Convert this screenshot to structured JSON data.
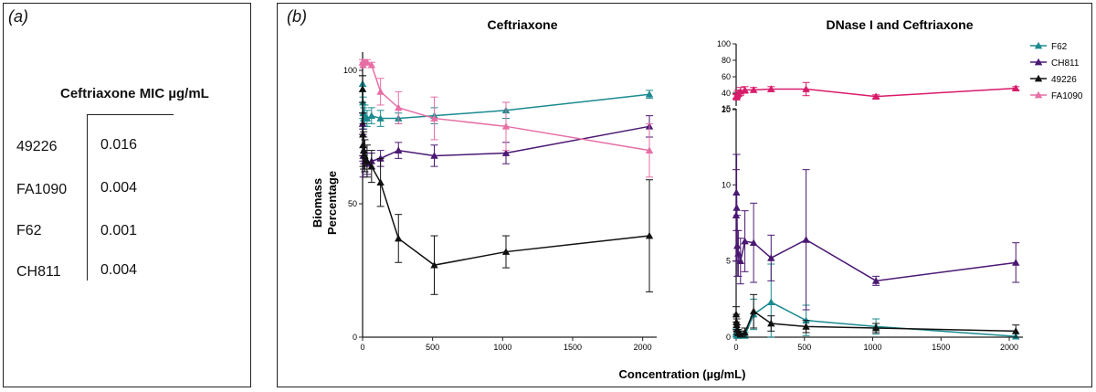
{
  "panel_a": {
    "label": "(a)",
    "table_header": "Ceftriaxone MIC µg/mL",
    "rows": [
      {
        "strain": "49226",
        "mic": "0.016"
      },
      {
        "strain": "FA1090",
        "mic": "0.004"
      },
      {
        "strain": "F62",
        "mic": "0.001"
      },
      {
        "strain": "CH811",
        "mic": "0.004"
      }
    ]
  },
  "panel_b": {
    "label": "(b)",
    "xlabel": "Concentration (µg/mL)",
    "ylabel_line1": "Biomass",
    "ylabel_line2": "Percentage"
  },
  "colors": {
    "F62": "#1a8a8f",
    "CH811": "#4a1873",
    "49226": "#111111",
    "FA1090": "#e66fa6",
    "FA1090_dnase": "#d81b6a"
  },
  "legend": [
    "F62",
    "CH811",
    "49226",
    "FA1090"
  ],
  "chart_data": [
    {
      "type": "line",
      "title": "Ceftriaxone",
      "xlim": [
        0,
        2100
      ],
      "ylim": [
        0,
        100
      ],
      "xticks": [
        0,
        500,
        1000,
        1500,
        2000
      ],
      "yticks": [
        0,
        50,
        100
      ],
      "series": [
        {
          "name": "F62",
          "color": "#1a8a8f",
          "x": [
            0,
            2,
            4,
            8,
            16,
            32,
            64,
            128,
            256,
            512,
            1024,
            2048
          ],
          "y": [
            95,
            88,
            84,
            82,
            83,
            82,
            83,
            82,
            82,
            83,
            85,
            91
          ],
          "err": [
            3,
            6,
            6,
            4,
            4,
            3,
            3,
            3,
            2,
            3,
            3,
            1.5
          ]
        },
        {
          "name": "CH811",
          "color": "#4a1873",
          "x": [
            0,
            2,
            4,
            8,
            16,
            32,
            64,
            128,
            256,
            512,
            1024,
            2048
          ],
          "y": [
            80,
            72,
            68,
            70,
            66,
            65,
            66,
            67,
            70,
            68,
            69,
            79
          ],
          "err": [
            4,
            6,
            8,
            5,
            4,
            4,
            3,
            3,
            3,
            4,
            4,
            4
          ]
        },
        {
          "name": "49226",
          "color": "#111111",
          "x": [
            0,
            2,
            4,
            8,
            16,
            32,
            64,
            128,
            256,
            512,
            1024,
            2048
          ],
          "y": [
            93,
            76,
            72,
            70,
            68,
            66,
            64,
            58,
            37,
            27,
            32,
            38
          ],
          "err": [
            5,
            8,
            8,
            7,
            6,
            6,
            6,
            9,
            9,
            11,
            6,
            21
          ]
        },
        {
          "name": "FA1090",
          "color": "#e66fa6",
          "x": [
            0,
            4,
            16,
            32,
            64,
            128,
            256,
            512,
            1024,
            2048
          ],
          "y": [
            103,
            102,
            103,
            103,
            102,
            92,
            86,
            82,
            79,
            70
          ],
          "err": [
            1,
            1,
            1,
            1,
            1,
            5,
            6,
            8,
            9,
            10
          ]
        }
      ]
    },
    {
      "type": "line",
      "title": "DNase I and Ceftriaxone",
      "xlim": [
        0,
        2100
      ],
      "ylim_lower": [
        0,
        15
      ],
      "ylim_upper": [
        20,
        100
      ],
      "xticks": [
        0,
        500,
        1000,
        1500,
        2000
      ],
      "yticks_lower": [
        0,
        5,
        10,
        15
      ],
      "yticks_upper": [
        20,
        40,
        60,
        80,
        100
      ],
      "series": [
        {
          "name": "F62",
          "color": "#1a8a8f",
          "x": [
            0,
            2,
            4,
            8,
            16,
            32,
            64,
            128,
            256,
            512,
            1024,
            2048
          ],
          "y": [
            0.3,
            0.2,
            0.2,
            0.1,
            0.1,
            0.2,
            0.1,
            1.5,
            2.3,
            1.1,
            0.7,
            0.05
          ],
          "err": [
            0.3,
            0.3,
            0.2,
            0.2,
            0.2,
            0.2,
            0.2,
            1.0,
            2.5,
            1.0,
            0.5,
            0.2
          ]
        },
        {
          "name": "CH811",
          "color": "#4a1873",
          "x": [
            0,
            2,
            4,
            8,
            16,
            32,
            64,
            128,
            256,
            512,
            1024,
            2048
          ],
          "y": [
            8.0,
            9.5,
            8.5,
            6.0,
            5.5,
            5.0,
            6.3,
            6.2,
            5.2,
            6.4,
            3.7,
            4.9
          ],
          "err": [
            3,
            2.5,
            3.5,
            2,
            1.5,
            1.5,
            2,
            2.6,
            1.5,
            4.6,
            0.3,
            1.3
          ]
        },
        {
          "name": "49226",
          "color": "#111111",
          "x": [
            0,
            2,
            4,
            8,
            16,
            32,
            64,
            128,
            256,
            512,
            1024,
            2048
          ],
          "y": [
            1.5,
            1.0,
            0.8,
            0.5,
            0.3,
            0.2,
            0.3,
            1.7,
            0.9,
            0.7,
            0.6,
            0.4
          ],
          "err": [
            0.5,
            0.5,
            0.4,
            0.3,
            0.2,
            0.2,
            0.3,
            1.1,
            0.5,
            0.4,
            0.3,
            0.4
          ]
        },
        {
          "name": "FA1090",
          "color": "#d81b6a",
          "x": [
            0,
            4,
            8,
            16,
            32,
            64,
            128,
            256,
            512,
            1024,
            2048
          ],
          "y": [
            36,
            35,
            38,
            40,
            42,
            44,
            44,
            45,
            45,
            36,
            46
          ],
          "err": [
            3,
            3,
            4,
            4,
            5,
            4,
            3,
            3,
            8,
            2,
            2
          ]
        }
      ]
    }
  ]
}
